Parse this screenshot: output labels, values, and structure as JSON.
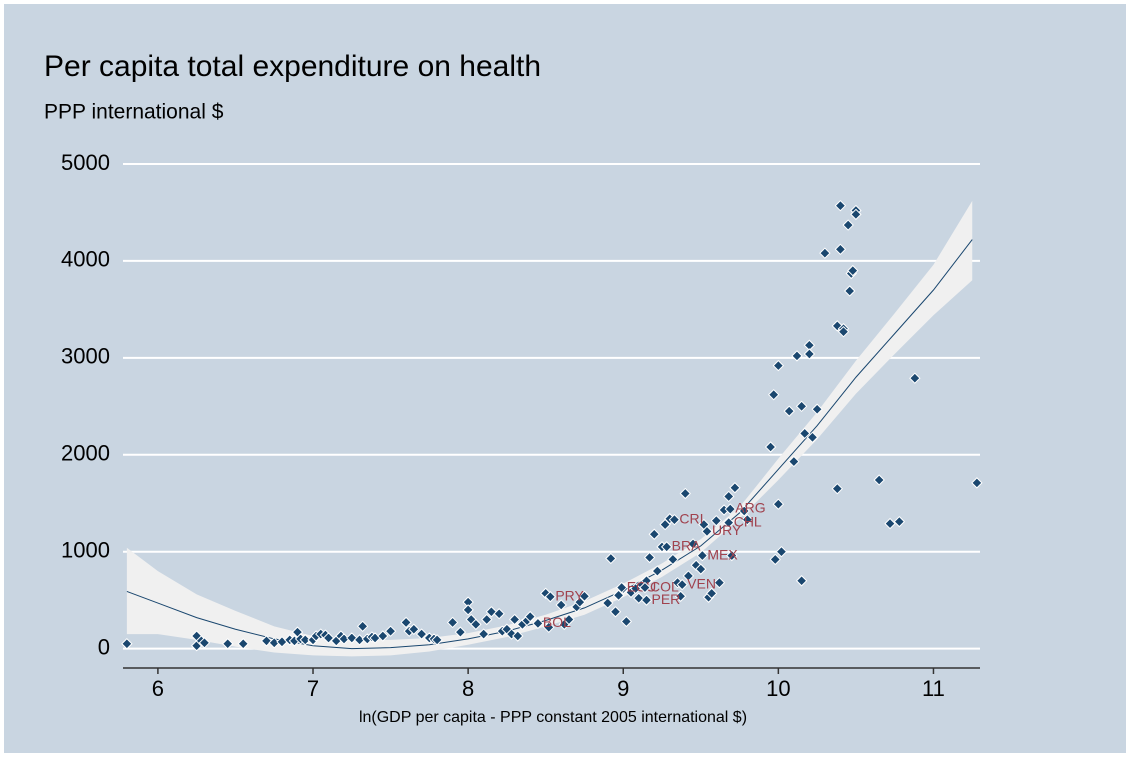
{
  "chart_data": {
    "type": "scatter",
    "title": "Per capita total expenditure on health",
    "subtitle": "PPP international $",
    "x_label": "ln(GDP per capita - PPP constant 2005 international $)",
    "xlim": [
      5.775,
      11.3
    ],
    "ylim": [
      -200,
      5000
    ],
    "xticks": [
      6,
      7,
      8,
      9,
      10,
      11
    ],
    "yticks": [
      0,
      1000,
      2000,
      3000,
      4000,
      5000
    ],
    "grid": true,
    "marker_color": "#1a476f",
    "label_color": "#a0424e",
    "points": {
      "x": [
        5.8,
        6.25,
        6.25,
        6.28,
        6.3,
        6.45,
        6.55,
        6.7,
        6.75,
        6.8,
        6.85,
        6.88,
        6.9,
        6.92,
        6.95,
        7.0,
        7.02,
        7.05,
        7.08,
        7.1,
        7.15,
        7.18,
        7.2,
        7.25,
        7.3,
        7.32,
        7.35,
        7.38,
        7.4,
        7.45,
        7.5,
        7.6,
        7.62,
        7.65,
        7.7,
        7.75,
        7.78,
        7.8,
        7.9,
        7.95,
        8.0,
        8.0,
        8.02,
        8.05,
        8.1,
        8.12,
        8.15,
        8.2,
        8.22,
        8.25,
        8.28,
        8.3,
        8.32,
        8.35,
        8.38,
        8.4,
        8.5,
        8.52,
        8.6,
        8.62,
        8.65,
        8.7,
        8.72,
        8.75,
        8.9,
        8.92,
        8.95,
        8.97,
        9.0,
        9.02,
        9.05,
        9.08,
        9.1,
        9.12,
        9.15,
        9.17,
        9.2,
        9.22,
        9.25,
        9.27,
        9.3,
        9.32,
        9.35,
        9.37,
        9.4,
        9.42,
        9.45,
        9.47,
        9.5,
        9.52,
        9.55,
        9.57,
        9.6,
        9.62,
        9.65,
        9.68,
        9.7,
        9.72,
        9.78,
        9.8,
        9.95,
        9.97,
        10.0,
        10.0,
        9.98,
        10.02,
        10.07,
        10.1,
        10.12,
        10.15,
        10.15,
        10.17,
        10.2,
        10.2,
        10.22,
        10.25,
        10.3,
        10.38,
        10.38,
        10.4,
        10.4,
        10.42,
        10.42,
        10.45,
        10.46,
        10.47,
        10.48,
        10.5,
        10.5,
        10.65,
        10.72,
        10.78,
        10.88,
        11.28
      ],
      "y": [
        50,
        130,
        30,
        80,
        60,
        50,
        50,
        80,
        60,
        70,
        90,
        80,
        170,
        100,
        90,
        90,
        130,
        150,
        140,
        110,
        80,
        130,
        100,
        110,
        90,
        230,
        100,
        120,
        110,
        130,
        180,
        270,
        180,
        200,
        150,
        110,
        100,
        90,
        270,
        170,
        480,
        400,
        300,
        250,
        150,
        300,
        380,
        360,
        180,
        200,
        150,
        300,
        130,
        250,
        290,
        330,
        570,
        220,
        450,
        250,
        300,
        430,
        480,
        540,
        470,
        930,
        380,
        550,
        620,
        280,
        580,
        620,
        520,
        660,
        700,
        940,
        1180,
        800,
        1050,
        1280,
        1340,
        920,
        680,
        540,
        1600,
        750,
        1080,
        860,
        820,
        1280,
        530,
        570,
        1320,
        680,
        1430,
        1570,
        960,
        1660,
        1420,
        1330,
        2080,
        2620,
        2920,
        1490,
        920,
        1000,
        2450,
        1930,
        3020,
        2500,
        700,
        2220,
        3130,
        3040,
        2180,
        2470,
        4080,
        1650,
        3330,
        4570,
        4120,
        3300,
        3270,
        4370,
        3690,
        3870,
        3900,
        4520,
        4480,
        1740,
        1290,
        1310,
        2790,
        1710
      ]
    },
    "labeled": {
      "labels": [
        "CRI",
        "ARG",
        "CHL",
        "URY",
        "BRA",
        "MEX",
        "VEN",
        "ECU",
        "COL",
        "PER",
        "PRY",
        "BOL"
      ],
      "x": [
        9.33,
        9.69,
        9.68,
        9.54,
        9.28,
        9.51,
        9.38,
        8.99,
        9.14,
        9.15,
        8.53,
        8.45
      ],
      "y": [
        1330,
        1440,
        1300,
        1210,
        1050,
        960,
        660,
        630,
        630,
        500,
        535,
        260
      ]
    },
    "fit": {
      "x": [
        5.8,
        6.0,
        6.25,
        6.5,
        6.75,
        7.0,
        7.25,
        7.5,
        7.75,
        8.0,
        8.25,
        8.5,
        8.75,
        9.0,
        9.25,
        9.5,
        9.75,
        10.0,
        10.25,
        10.5,
        10.75,
        11.0,
        11.25
      ],
      "y": [
        590,
        470,
        320,
        200,
        100,
        30,
        0,
        10,
        40,
        100,
        180,
        290,
        420,
        600,
        810,
        1060,
        1400,
        1850,
        2300,
        2800,
        3250,
        3700,
        4220
      ],
      "ci_high": [
        1040,
        800,
        560,
        390,
        230,
        130,
        90,
        90,
        110,
        160,
        240,
        350,
        490,
        670,
        880,
        1130,
        1460,
        1960,
        2440,
        2970,
        3460,
        3960,
        4620
      ],
      "ci_low": [
        150,
        150,
        90,
        20,
        -40,
        -70,
        -80,
        -70,
        -30,
        40,
        120,
        230,
        350,
        530,
        740,
        990,
        1340,
        1740,
        2160,
        2630,
        3040,
        3440,
        3800
      ],
      "line_color": "#1a476f",
      "band_color": "#f0f0f0"
    }
  }
}
